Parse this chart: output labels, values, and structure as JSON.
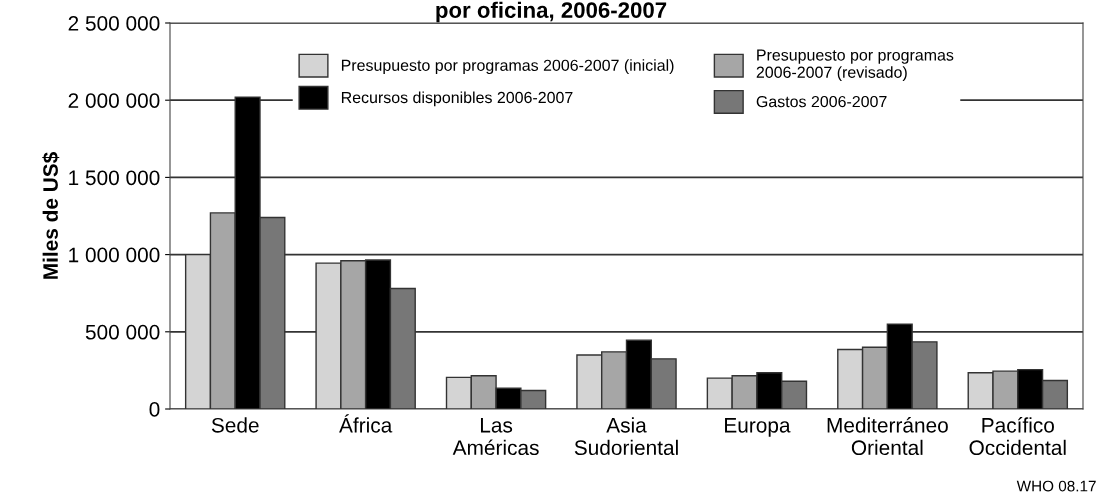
{
  "chart_data": {
    "type": "bar",
    "title": "por oficina, 2006-2007",
    "ylabel": "Miles de US$",
    "categories": [
      "Sede",
      "África",
      "Las\nAméricas",
      "Asia\nSudoriental",
      "Europa",
      "Mediterráneo\nOriental",
      "Pacífico\nOccidental"
    ],
    "series": [
      {
        "name": "Presupuesto por programas 2006-2007 (inicial)",
        "color": "#d4d4d4",
        "values": [
          1000000,
          945000,
          205000,
          350000,
          200000,
          385000,
          235000
        ]
      },
      {
        "name": "Presupuesto por programas\n2006-2007 (revisado)",
        "color": "#a6a6a6",
        "values": [
          1270000,
          960000,
          215000,
          370000,
          215000,
          400000,
          245000
        ]
      },
      {
        "name": "Recursos disponibles 2006-2007",
        "color": "#000000",
        "values": [
          2020000,
          965000,
          135000,
          445000,
          235000,
          550000,
          255000
        ]
      },
      {
        "name": "Gastos 2006-2007",
        "color": "#777777",
        "values": [
          1240000,
          780000,
          120000,
          325000,
          180000,
          435000,
          185000
        ]
      }
    ],
    "ylim": [
      0,
      2500000
    ],
    "yticks": [
      {
        "value": 0,
        "label": "0"
      },
      {
        "value": 500000,
        "label": "500 000"
      },
      {
        "value": 1000000,
        "label": "1 000 000"
      },
      {
        "value": 1500000,
        "label": "1 500 000"
      },
      {
        "value": 2000000,
        "label": "2 000 000"
      },
      {
        "value": 2500000,
        "label": "2 500 000"
      }
    ],
    "grid": "y",
    "legend": "top",
    "annotations": [
      "WHO 08.17"
    ]
  }
}
